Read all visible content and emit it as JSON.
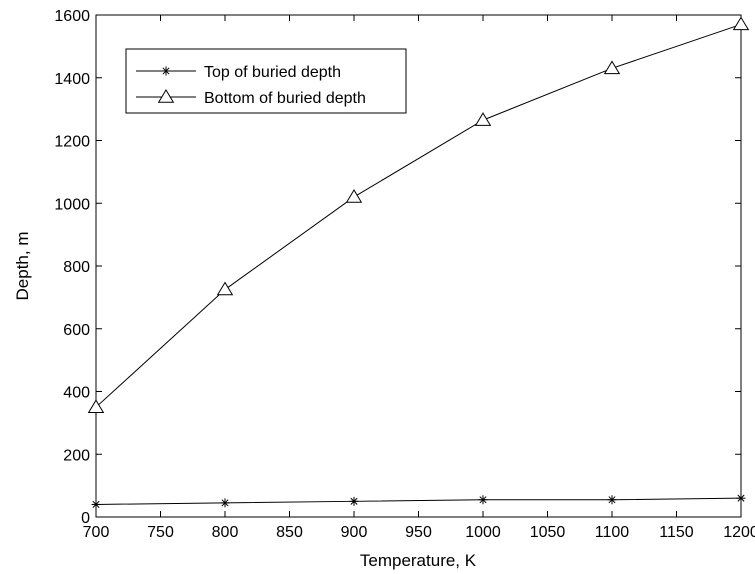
{
  "chart_data": {
    "type": "line",
    "xlabel": "Temperature, K",
    "ylabel": "Depth, m",
    "xlim": [
      700,
      1200
    ],
    "ylim": [
      0,
      1600
    ],
    "xticks": [
      700,
      750,
      800,
      850,
      900,
      950,
      1000,
      1050,
      1100,
      1150,
      1200
    ],
    "yticks": [
      0,
      200,
      400,
      600,
      800,
      1000,
      1200,
      1400,
      1600
    ],
    "grid": false,
    "legend_position": "top-left",
    "x": [
      700,
      800,
      900,
      1000,
      1100,
      1200
    ],
    "series": [
      {
        "name": "Top of buried depth",
        "marker": "asterisk",
        "color": "#000000",
        "values": [
          40,
          45,
          50,
          55,
          55,
          60
        ]
      },
      {
        "name": "Bottom of buried depth",
        "marker": "triangle",
        "color": "#000000",
        "values": [
          350,
          725,
          1020,
          1265,
          1430,
          1570
        ]
      }
    ]
  }
}
